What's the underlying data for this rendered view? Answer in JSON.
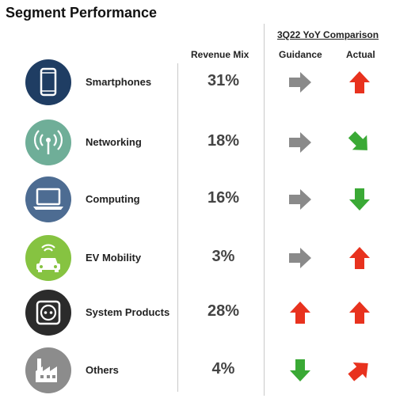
{
  "title": "Segment Performance",
  "comparison_label": "3Q22 YoY Comparison",
  "columns": {
    "mix": "Revenue Mix",
    "guidance": "Guidance",
    "actual": "Actual"
  },
  "colors": {
    "flat": "#8a8a8a",
    "up": "#e8321e",
    "down": "#3aa935"
  },
  "segments": [
    {
      "name": "Smartphones",
      "mix": "31%",
      "icon": "smartphone-icon",
      "icon_color": "#1f3d63",
      "guidance": "flat",
      "actual": "up"
    },
    {
      "name": "Networking",
      "mix": "18%",
      "icon": "wireless-signal-icon",
      "icon_color": "#6fae98",
      "guidance": "flat",
      "actual": "down-right"
    },
    {
      "name": "Computing",
      "mix": "16%",
      "icon": "laptop-icon",
      "icon_color": "#4d6c92",
      "guidance": "flat",
      "actual": "down"
    },
    {
      "name": "EV Mobility",
      "mix": "3%",
      "icon": "connected-car-icon",
      "icon_color": "#86c341",
      "guidance": "flat",
      "actual": "up"
    },
    {
      "name": "System Products",
      "mix": "28%",
      "icon": "power-outlet-icon",
      "icon_color": "#2b2b2b",
      "guidance": "up",
      "actual": "up"
    },
    {
      "name": "Others",
      "mix": "4%",
      "icon": "factory-icon",
      "icon_color": "#8c8c8c",
      "guidance": "down",
      "actual": "up-right"
    }
  ]
}
